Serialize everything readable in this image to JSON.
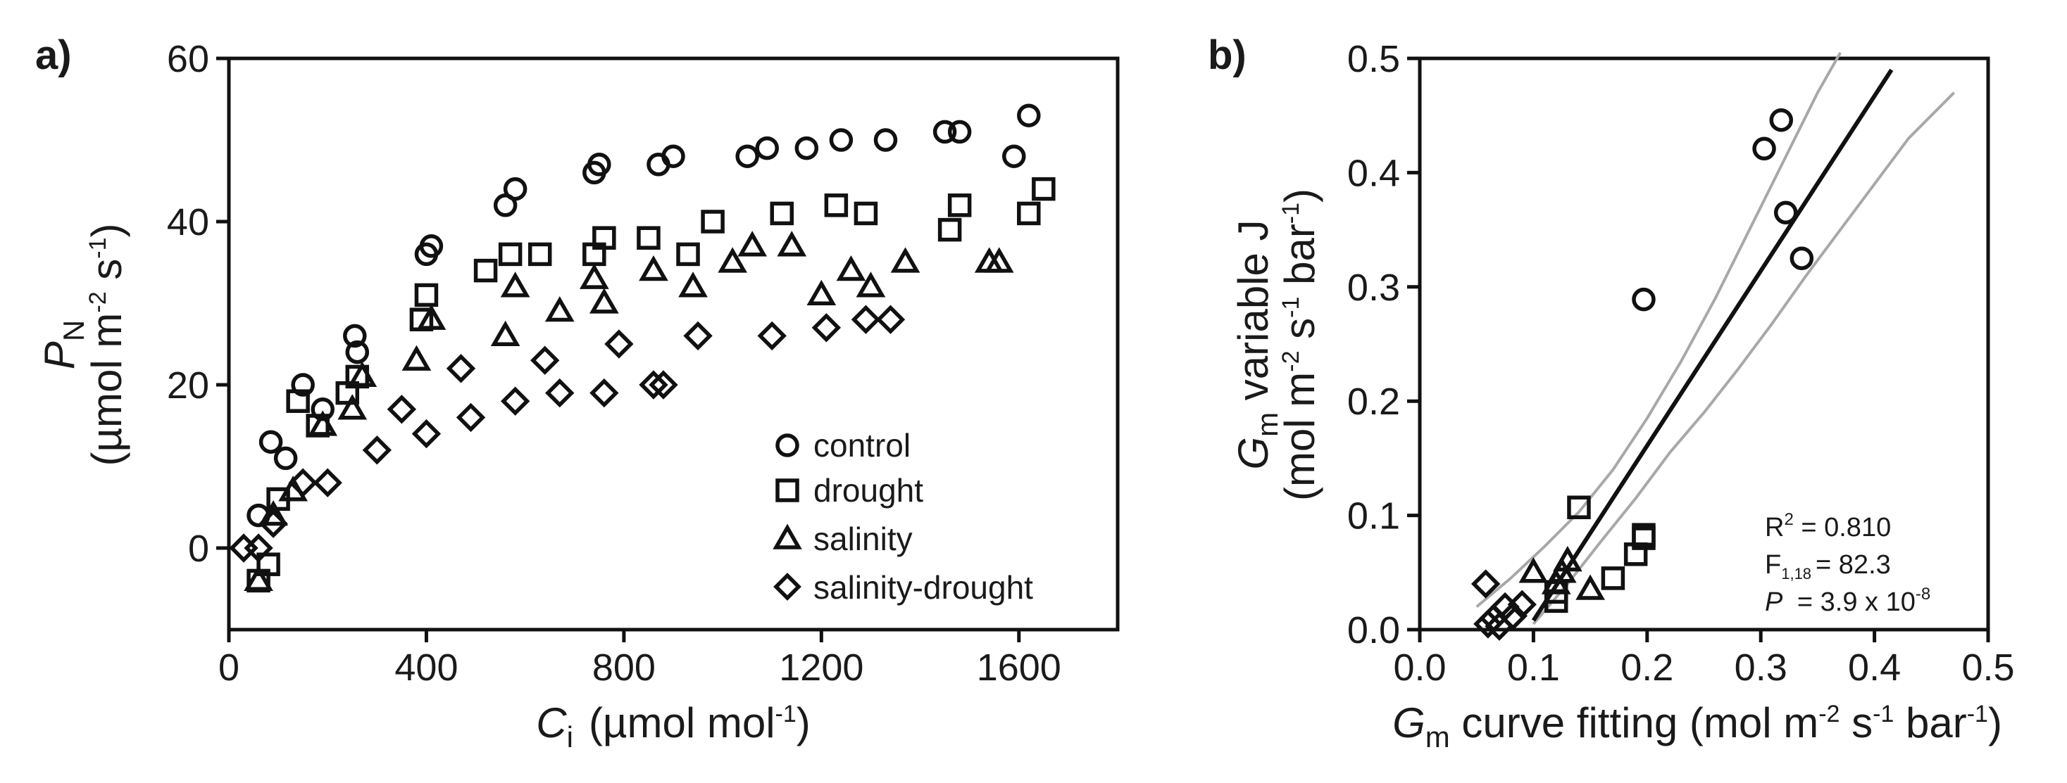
{
  "chart_data": [
    {
      "type": "scatter",
      "panel_label": "a)",
      "xlabel_symbol": "C",
      "xlabel_sub": "i",
      "xlabel_unit": "(µmol mol",
      "xlabel_unit_sup": "-1",
      "xlabel_unit_end": ")",
      "ylabel_symbol": "P",
      "ylabel_sub": "N",
      "ylabel_unit_a": "(µmol m",
      "ylabel_unit_sup1": "-2",
      "ylabel_unit_b": " s",
      "ylabel_unit_sup2": "-1",
      "ylabel_unit_end": ")",
      "xlim": [
        0,
        1800
      ],
      "ylim": [
        -10,
        60
      ],
      "xticks": [
        "0",
        "400",
        "800",
        "1200",
        "1600"
      ],
      "yticks": [
        "0",
        "20",
        "40",
        "60"
      ],
      "legend_position": "bottom-right",
      "series": [
        {
          "name": "control",
          "marker": "circle",
          "x": [
            60,
            85,
            115,
            150,
            190,
            255,
            260,
            400,
            410,
            560,
            580,
            740,
            750,
            870,
            900,
            1050,
            1090,
            1170,
            1240,
            1330,
            1450,
            1480,
            1590,
            1620
          ],
          "y": [
            4,
            13,
            11,
            20,
            17,
            26,
            24,
            36,
            37,
            42,
            44,
            46,
            47,
            47,
            48,
            48,
            49,
            49,
            50,
            50,
            51,
            51,
            48,
            53
          ]
        },
        {
          "name": "drought",
          "marker": "square",
          "x": [
            60,
            80,
            100,
            140,
            180,
            240,
            260,
            390,
            400,
            520,
            570,
            630,
            740,
            760,
            850,
            930,
            980,
            1120,
            1230,
            1290,
            1460,
            1480,
            1620,
            1650
          ],
          "y": [
            -4,
            -2,
            6,
            18,
            15,
            19,
            21,
            28,
            31,
            34,
            36,
            36,
            36,
            38,
            38,
            36,
            40,
            41,
            42,
            41,
            39,
            42,
            41,
            44
          ]
        },
        {
          "name": "salinity",
          "marker": "triangle",
          "x": [
            60,
            90,
            130,
            190,
            250,
            270,
            380,
            410,
            560,
            580,
            670,
            740,
            760,
            860,
            940,
            1020,
            1060,
            1140,
            1200,
            1260,
            1300,
            1370,
            1540,
            1560
          ],
          "y": [
            -4,
            4,
            7,
            15,
            17,
            21,
            23,
            28,
            26,
            32,
            29,
            33,
            30,
            34,
            32,
            35,
            37,
            37,
            31,
            34,
            32,
            35,
            35,
            35
          ]
        },
        {
          "name": "salinity-drought",
          "marker": "diamond",
          "x": [
            30,
            60,
            90,
            150,
            200,
            300,
            350,
            400,
            470,
            490,
            580,
            640,
            670,
            760,
            790,
            860,
            880,
            950,
            1100,
            1210,
            1290,
            1340
          ],
          "y": [
            0,
            0,
            3,
            8,
            8,
            12,
            17,
            14,
            22,
            16,
            18,
            23,
            19,
            19,
            25,
            20,
            20,
            26,
            26,
            27,
            28,
            28
          ]
        }
      ]
    },
    {
      "type": "scatter",
      "panel_label": "b)",
      "xlabel_symbol": "G",
      "xlabel_sub": "m",
      "xlabel_text_a": " curve fitting (mol m",
      "xlabel_sup1": "-2",
      "xlabel_text_b": "  s",
      "xlabel_sup2": "-1",
      "xlabel_text_c": " bar",
      "xlabel_sup3": "-1",
      "xlabel_text_end": ")",
      "ylabel_symbol": "G",
      "ylabel_sub": "m",
      "ylabel_text": " variable J",
      "ylabel_unit_a": "(mol m",
      "ylabel_unit_sup1": "-2",
      "ylabel_unit_b": " s",
      "ylabel_unit_sup2": "-1",
      "ylabel_unit_c": " bar",
      "ylabel_unit_sup3": "-1",
      "ylabel_unit_end": ")",
      "xlim": [
        0,
        0.5
      ],
      "ylim": [
        0,
        0.5
      ],
      "xticks": [
        "0.0",
        "0.1",
        "0.2",
        "0.3",
        "0.4",
        "0.5"
      ],
      "yticks": [
        "0.0",
        "0.1",
        "0.2",
        "0.3",
        "0.4",
        "0.5"
      ],
      "series": [
        {
          "name": "control",
          "marker": "circle",
          "x": [
            0.197,
            0.303,
            0.318,
            0.322,
            0.336
          ],
          "y": [
            0.289,
            0.421,
            0.446,
            0.365,
            0.325
          ]
        },
        {
          "name": "drought",
          "marker": "square",
          "x": [
            0.12,
            0.12,
            0.14,
            0.17,
            0.19,
            0.197,
            0.197
          ],
          "y": [
            0.025,
            0.033,
            0.107,
            0.045,
            0.066,
            0.083,
            0.08
          ]
        },
        {
          "name": "salinity",
          "marker": "triangle",
          "x": [
            0.1,
            0.12,
            0.125,
            0.13,
            0.15
          ],
          "y": [
            0.05,
            0.04,
            0.05,
            0.06,
            0.035
          ]
        },
        {
          "name": "salinity-drought",
          "marker": "diamond",
          "x": [
            0.058,
            0.06,
            0.065,
            0.07,
            0.075,
            0.082,
            0.09
          ],
          "y": [
            0.04,
            0.005,
            0.01,
            0.003,
            0.02,
            0.012,
            0.022
          ]
        }
      ],
      "regression": {
        "x": [
          0.1,
          0.415
        ],
        "y": [
          0.008,
          0.49
        ]
      },
      "confidence_upper": {
        "x": [
          0.05,
          0.08,
          0.11,
          0.14,
          0.17,
          0.2,
          0.23,
          0.26,
          0.29,
          0.32,
          0.35,
          0.37
        ],
        "y": [
          0.02,
          0.045,
          0.073,
          0.103,
          0.14,
          0.185,
          0.235,
          0.29,
          0.35,
          0.41,
          0.47,
          0.505
        ]
      },
      "confidence_lower": {
        "x": [
          0.1,
          0.13,
          0.16,
          0.19,
          0.22,
          0.25,
          0.28,
          0.31,
          0.34,
          0.37,
          0.4,
          0.43,
          0.47
        ],
        "y": [
          0.005,
          0.04,
          0.078,
          0.115,
          0.155,
          0.19,
          0.228,
          0.268,
          0.31,
          0.35,
          0.39,
          0.43,
          0.47
        ]
      },
      "stats": {
        "r2_label": "R",
        "r2_sup": "2",
        "r2_value": " = 0.810",
        "f_label": "F",
        "f_sub": "1,18",
        "f_value": "= 82.3",
        "p_label": "P",
        "p_value": " = 3.9 x 10",
        "p_sup": "-8"
      }
    }
  ]
}
